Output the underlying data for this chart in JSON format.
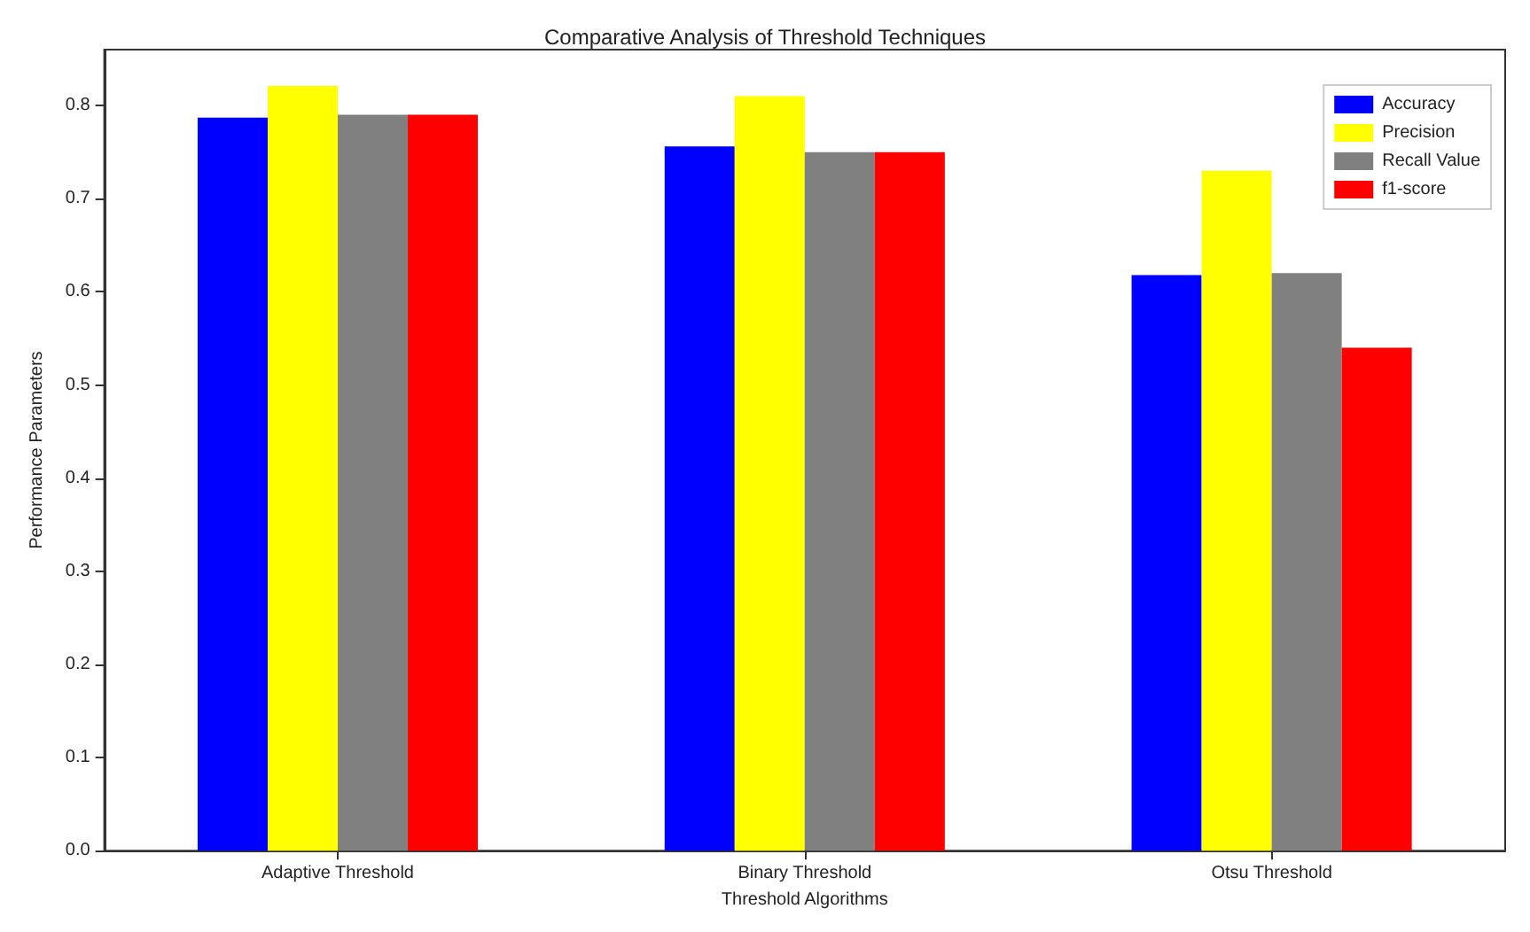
{
  "chart_data": {
    "type": "bar",
    "title": "Comparative Analysis of Threshold Techniques",
    "xlabel": "Threshold Algorithms",
    "ylabel": "Performance Parameters",
    "categories": [
      "Adaptive Threshold",
      "Binary Threshold",
      "Otsu Threshold"
    ],
    "series": [
      {
        "name": "Accuracy",
        "color": "#0000ff",
        "values": [
          0.787,
          0.756,
          0.618
        ]
      },
      {
        "name": "Precision",
        "color": "#ffff00",
        "values": [
          0.821,
          0.81,
          0.73
        ]
      },
      {
        "name": "Recall Value",
        "color": "#808080",
        "values": [
          0.79,
          0.75,
          0.62
        ]
      },
      {
        "name": "f1-score",
        "color": "#ff0000",
        "values": [
          0.79,
          0.75,
          0.54
        ]
      }
    ],
    "ylim": [
      0,
      0.86
    ],
    "yticks": [
      {
        "value": 0,
        "label": "0.0"
      },
      0.1,
      0.2,
      0.3,
      0.4,
      0.5,
      0.6,
      0.7,
      0.8
    ],
    "grid": false,
    "legend": "top right"
  }
}
